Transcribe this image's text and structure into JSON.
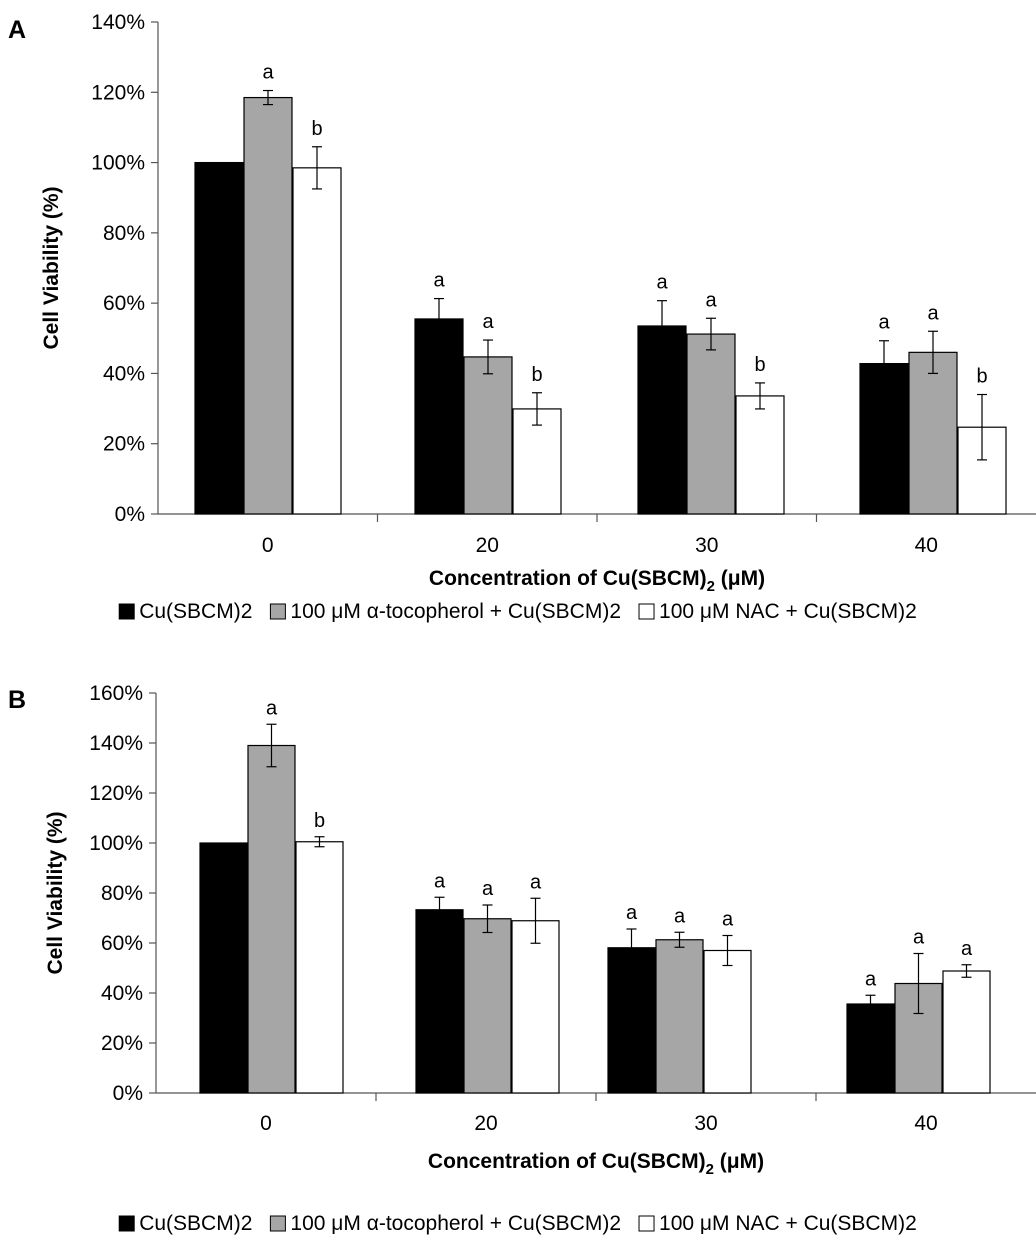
{
  "chart_data": [
    {
      "type": "bar",
      "panel_label": "A",
      "categories": [
        "0",
        "20",
        "30",
        "40"
      ],
      "ylim": [
        0,
        140
      ],
      "yticks": [
        0,
        20,
        40,
        60,
        80,
        100,
        120,
        140
      ],
      "ytick_labels": [
        "0%",
        "20%",
        "40%",
        "60%",
        "80%",
        "100%",
        "120%",
        "140%"
      ],
      "ylabel": "Cell Viability (%)",
      "xlabel": "Concentration of Cu(SBCM)",
      "xlabel_sub": "2",
      "xlabel_suffix": " (μM)",
      "legend_position": "bottom",
      "series": [
        {
          "name": "Cu(SBCM)2",
          "color": "#000000",
          "values": [
            100,
            55.5,
            53.5,
            42.8
          ],
          "errors": [
            0,
            5.8,
            7.2,
            6.5
          ],
          "labels": [
            "",
            "a",
            "a",
            "a"
          ]
        },
        {
          "name": "100 μM α-tocopherol + Cu(SBCM)2",
          "color": "#a6a6a6",
          "values": [
            118.5,
            44.7,
            51.2,
            46.0
          ],
          "errors": [
            2.0,
            4.8,
            4.5,
            6.0
          ],
          "labels": [
            "a",
            "a",
            "a",
            "a"
          ]
        },
        {
          "name": "100 μM NAC + Cu(SBCM)2",
          "color": "#ffffff",
          "values": [
            98.5,
            29.9,
            33.6,
            24.7
          ],
          "errors": [
            6.0,
            4.6,
            3.7,
            9.3
          ],
          "labels": [
            "b",
            "b",
            "b",
            "b"
          ]
        }
      ]
    },
    {
      "type": "bar",
      "panel_label": "B",
      "categories": [
        "0",
        "20",
        "30",
        "40"
      ],
      "ylim": [
        0,
        160
      ],
      "yticks": [
        0,
        20,
        40,
        60,
        80,
        100,
        120,
        140,
        160
      ],
      "ytick_labels": [
        "0%",
        "20%",
        "40%",
        "60%",
        "80%",
        "100%",
        "120%",
        "140%",
        "160%"
      ],
      "ylabel": "Cell Viability (%)",
      "xlabel": "Concentration of Cu(SBCM)",
      "xlabel_sub": "2",
      "xlabel_suffix": " (μM)",
      "legend_position": "bottom",
      "series": [
        {
          "name": "Cu(SBCM)2",
          "color": "#000000",
          "values": [
            100,
            73.3,
            58.1,
            35.6
          ],
          "errors": [
            0,
            5.0,
            7.5,
            3.5
          ],
          "labels": [
            "",
            "a",
            "a",
            "a"
          ]
        },
        {
          "name": "100 μM α-tocopherol + Cu(SBCM)2",
          "color": "#a6a6a6",
          "values": [
            139.0,
            69.7,
            61.3,
            43.8
          ],
          "errors": [
            8.5,
            5.5,
            3.0,
            12.0
          ],
          "labels": [
            "a",
            "a",
            "a",
            "a"
          ]
        },
        {
          "name": "100 μM NAC + Cu(SBCM)2",
          "color": "#ffffff",
          "values": [
            100.5,
            68.9,
            57.0,
            48.8
          ],
          "errors": [
            2.0,
            9.0,
            6.0,
            2.5
          ],
          "labels": [
            "b",
            "a",
            "a",
            "a"
          ]
        }
      ]
    }
  ]
}
